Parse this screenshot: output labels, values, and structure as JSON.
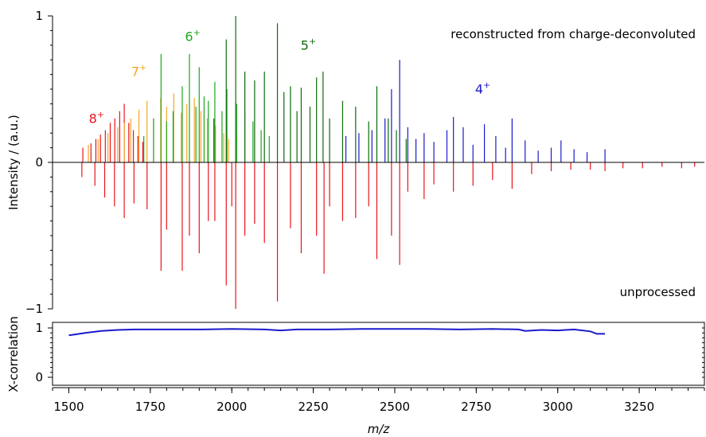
{
  "chart_data": [
    {
      "type": "bar",
      "panel": "spectrum",
      "xlabel": "m/z",
      "ylabel": "Intensity / (a.u.)",
      "xlim": [
        1450,
        3450
      ],
      "ylim": [
        -1,
        1
      ],
      "yticks": [
        "1",
        "0",
        "−1"
      ],
      "xticks": [
        "1500",
        "1750",
        "2000",
        "2250",
        "2500",
        "2750",
        "3000",
        "3250"
      ],
      "annotations": {
        "top_text": "reconstructed from charge-deconvoluted",
        "bottom_text": "unprocessed"
      },
      "charge_labels": [
        {
          "label": "8",
          "sup": "+",
          "color": "#e8141c",
          "x": 1585,
          "y": 0.27
        },
        {
          "label": "7",
          "sup": "+",
          "color": "#f5a623",
          "x": 1715,
          "y": 0.59
        },
        {
          "label": "6",
          "sup": "+",
          "color": "#1ea51e",
          "x": 1880,
          "y": 0.83
        },
        {
          "label": "5",
          "sup": "+",
          "color": "#0c6b0c",
          "x": 2235,
          "y": 0.77
        },
        {
          "label": "4",
          "sup": "+",
          "color": "#1a1acc",
          "x": 2770,
          "y": 0.47
        }
      ],
      "series": [
        {
          "name": "8+",
          "color": "#e8141c",
          "x": [
            1543,
            1568,
            1583,
            1597,
            1612,
            1627,
            1641,
            1656,
            1670,
            1684,
            1698,
            1712,
            1727
          ],
          "y": [
            0.1,
            0.13,
            0.16,
            0.19,
            0.22,
            0.27,
            0.3,
            0.35,
            0.4,
            0.27,
            0.22,
            0.18,
            0.14
          ]
        },
        {
          "name": "7+",
          "color": "#f5a623",
          "x": [
            1560,
            1590,
            1620,
            1650,
            1670,
            1690,
            1715,
            1740,
            1760,
            1782,
            1800,
            1822,
            1845,
            1862,
            1885,
            1905,
            1925,
            1950,
            1975,
            1990
          ],
          "y": [
            0.12,
            0.16,
            0.2,
            0.24,
            0.27,
            0.3,
            0.36,
            0.42,
            0.3,
            0.44,
            0.38,
            0.47,
            0.34,
            0.4,
            0.44,
            0.35,
            0.3,
            0.25,
            0.2,
            0.16
          ]
        },
        {
          "name": "6+",
          "color": "#1ea51e",
          "x": [
            1730,
            1760,
            1783,
            1800,
            1820,
            1848,
            1870,
            1890,
            1900,
            1915,
            1928,
            1948,
            1970,
            1985,
            2015,
            2040,
            2065,
            2090,
            2115
          ],
          "y": [
            0.18,
            0.3,
            0.74,
            0.28,
            0.35,
            0.52,
            0.74,
            0.38,
            0.65,
            0.45,
            0.42,
            0.55,
            0.35,
            0.5,
            0.4,
            0.35,
            0.28,
            0.22,
            0.18
          ]
        },
        {
          "name": "5+",
          "color": "#0c6b0c",
          "x": [
            1945,
            1983,
            2012,
            2040,
            2070,
            2100,
            2140,
            2160,
            2180,
            2200,
            2213,
            2240,
            2260,
            2280,
            2300,
            2340,
            2380,
            2420,
            2445,
            2480,
            2505,
            2535
          ],
          "y": [
            0.3,
            0.84,
            1.0,
            0.62,
            0.56,
            0.62,
            0.95,
            0.48,
            0.52,
            0.35,
            0.51,
            0.38,
            0.58,
            0.62,
            0.3,
            0.42,
            0.38,
            0.28,
            0.52,
            0.3,
            0.22,
            0.16
          ]
        },
        {
          "name": "4+",
          "color": "#1a1acc",
          "x": [
            2350,
            2390,
            2430,
            2470,
            2490,
            2515,
            2540,
            2565,
            2590,
            2620,
            2660,
            2680,
            2710,
            2740,
            2775,
            2810,
            2840,
            2860,
            2900,
            2940,
            2980,
            3010,
            3050,
            3090,
            3145
          ],
          "y": [
            0.18,
            0.2,
            0.22,
            0.3,
            0.5,
            0.7,
            0.24,
            0.16,
            0.2,
            0.14,
            0.22,
            0.31,
            0.24,
            0.12,
            0.26,
            0.18,
            0.1,
            0.3,
            0.15,
            0.08,
            0.1,
            0.15,
            0.09,
            0.07,
            0.09
          ]
        },
        {
          "name": "unprocessed",
          "color": "#e8141c",
          "x": [
            1540,
            1580,
            1610,
            1640,
            1670,
            1700,
            1740,
            1783,
            1800,
            1848,
            1870,
            1900,
            1928,
            1948,
            1983,
            2000,
            2012,
            2040,
            2070,
            2100,
            2140,
            2180,
            2213,
            2260,
            2283,
            2300,
            2340,
            2380,
            2420,
            2445,
            2490,
            2515,
            2540,
            2590,
            2620,
            2680,
            2740,
            2800,
            2860,
            2920,
            2980,
            3040,
            3100,
            3145,
            3200,
            3260,
            3320,
            3380,
            3420
          ],
          "y": [
            -0.1,
            -0.16,
            -0.24,
            -0.3,
            -0.38,
            -0.28,
            -0.32,
            -0.74,
            -0.46,
            -0.74,
            -0.5,
            -0.62,
            -0.4,
            -0.4,
            -0.84,
            -0.3,
            -1.0,
            -0.5,
            -0.42,
            -0.55,
            -0.95,
            -0.45,
            -0.62,
            -0.5,
            -0.76,
            -0.3,
            -0.4,
            -0.38,
            -0.3,
            -0.66,
            -0.5,
            -0.7,
            -0.2,
            -0.25,
            -0.15,
            -0.2,
            -0.16,
            -0.12,
            -0.18,
            -0.08,
            -0.06,
            -0.05,
            -0.05,
            -0.06,
            -0.04,
            -0.04,
            -0.03,
            -0.04,
            -0.03
          ]
        }
      ]
    },
    {
      "type": "line",
      "panel": "correlation",
      "ylabel": "X-correlation",
      "xlim": [
        1450,
        3450
      ],
      "ylim": [
        0,
        1
      ],
      "yticks": [
        "1",
        "0"
      ],
      "series": [
        {
          "name": "X-correlation",
          "color": "#1a1acc",
          "x": [
            1500,
            1520,
            1550,
            1600,
            1650,
            1700,
            1800,
            1900,
            2000,
            2100,
            2150,
            2200,
            2300,
            2400,
            2500,
            2600,
            2700,
            2800,
            2880,
            2900,
            2950,
            3000,
            3050,
            3100,
            3120,
            3145
          ],
          "y": [
            0.85,
            0.87,
            0.9,
            0.94,
            0.96,
            0.97,
            0.97,
            0.97,
            0.98,
            0.97,
            0.95,
            0.97,
            0.97,
            0.98,
            0.98,
            0.98,
            0.97,
            0.98,
            0.97,
            0.94,
            0.96,
            0.95,
            0.97,
            0.93,
            0.88,
            0.88
          ]
        }
      ]
    }
  ]
}
